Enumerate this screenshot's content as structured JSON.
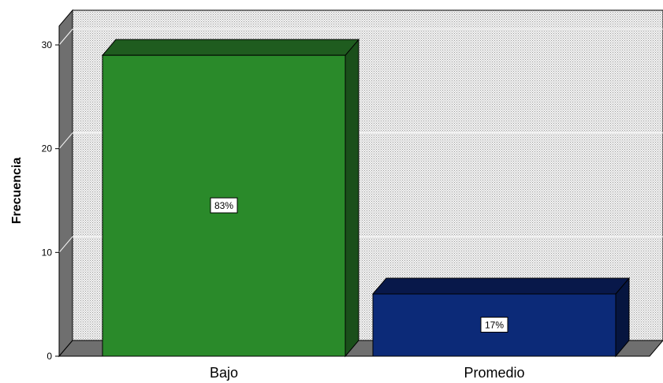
{
  "chart_data": {
    "type": "bar",
    "categories": [
      "Bajo",
      "Promedio"
    ],
    "values": [
      29,
      6
    ],
    "data_labels": [
      "83%",
      "17%"
    ],
    "title": "",
    "xlabel": "",
    "ylabel": "Frecuencia",
    "ylim": [
      0,
      30
    ],
    "yticks": [
      "0",
      "10",
      "20",
      "30"
    ],
    "grid": true,
    "style": "3d",
    "colors": {
      "bar_fronts": [
        "#2a8a2a",
        "#0c2a78"
      ],
      "bar_tops": [
        "#1f5c1f",
        "#08184a"
      ],
      "bar_sides": [
        "#1a4f1a",
        "#06153f"
      ],
      "plot_background": "#e8e8e8",
      "walls": "#6f6f6f",
      "gridlines": "#ffffff"
    }
  }
}
